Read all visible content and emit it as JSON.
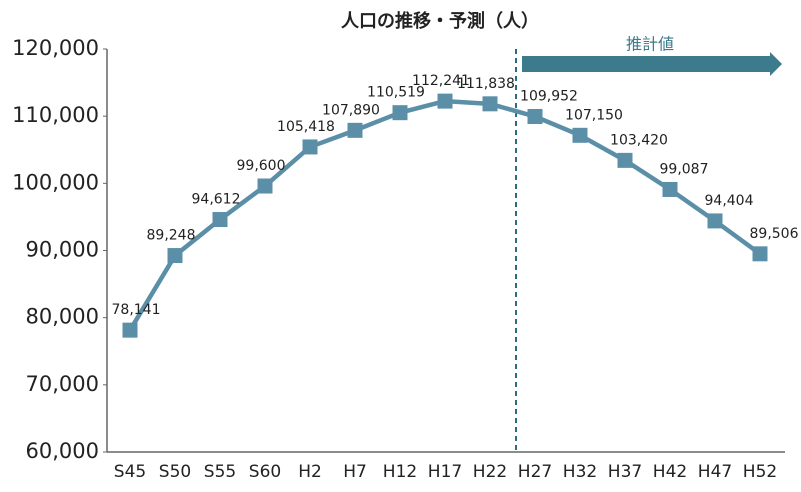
{
  "chart_data": {
    "type": "line",
    "title": "人口の推移・予測（人）",
    "annotation": "推計値",
    "categories": [
      "S45",
      "S50",
      "S55",
      "S60",
      "H2",
      "H7",
      "H12",
      "H17",
      "H22",
      "H27",
      "H32",
      "H37",
      "H42",
      "H47",
      "H52"
    ],
    "series": [
      {
        "name": "人口",
        "color": "#5b8fa8",
        "values": [
          78141,
          89248,
          94612,
          99600,
          105418,
          107890,
          110519,
          112241,
          111838,
          109952,
          107150,
          103420,
          99087,
          94404,
          89506
        ],
        "value_labels": [
          "78,141",
          "89,248",
          "94,612",
          "99,600",
          "105,418",
          "107,890",
          "110,519",
          "112,241",
          "111,838",
          "109,952",
          "107,150",
          "103,420",
          "99,087",
          "94,404",
          "89,506"
        ]
      }
    ],
    "ylim": [
      60000,
      120000
    ],
    "yticks": [
      {
        "value": 60000,
        "label": "60,000"
      },
      {
        "value": 70000,
        "label": "70,000"
      },
      {
        "value": 80000,
        "label": "80,000"
      },
      {
        "value": 90000,
        "label": "90,000"
      },
      {
        "value": 100000,
        "label": "100,000"
      },
      {
        "value": 110000,
        "label": "110,000"
      },
      {
        "value": 120000,
        "label": "120,000"
      }
    ],
    "grid": false
  }
}
